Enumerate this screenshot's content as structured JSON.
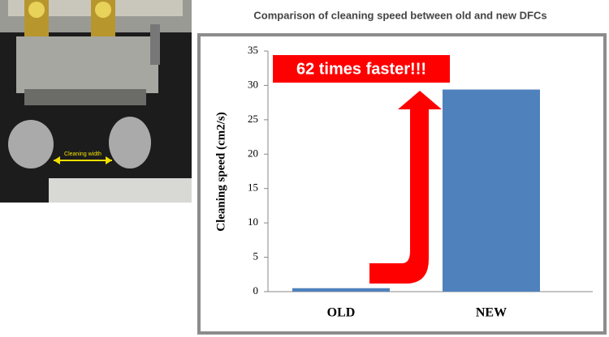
{
  "chart_data": {
    "type": "bar",
    "title": "Comparison of cleaning speed between old and new DFCs",
    "y_label": "Cleaning speed (cm2/s)",
    "categories": [
      "OLD",
      "NEW"
    ],
    "values": [
      0.5,
      29.4
    ],
    "color": "#4f81bd",
    "ylim": [
      0,
      35
    ],
    "yticks": [
      0,
      5,
      10,
      15,
      20,
      25,
      30,
      35
    ],
    "annotation": "62 times faster!!!"
  },
  "photo": {
    "label": "Cleaning width"
  }
}
